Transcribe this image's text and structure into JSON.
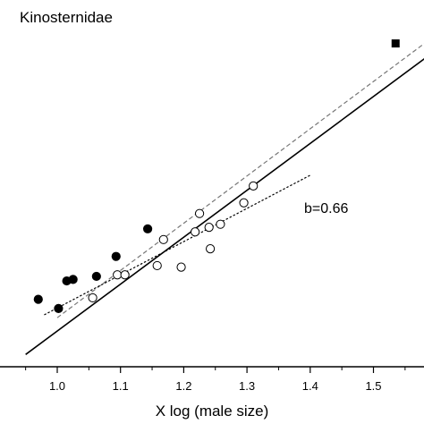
{
  "chart_data": {
    "type": "scatter",
    "title": "Kinosternidae",
    "xlabel": "X log (male size)",
    "ylabel": "",
    "xlim": [
      0.9,
      1.6
    ],
    "ylim": [
      0.58,
      1.66
    ],
    "x_ticks": [
      1.0,
      1.1,
      1.2,
      1.3,
      1.4,
      1.5
    ],
    "x_tick_labels": [
      "1.0",
      "1.1",
      "1.2",
      "1.3",
      "1.4",
      "1.5"
    ],
    "annotation": "b=0.66",
    "grid": false,
    "series": [
      {
        "marker": "filled-circle",
        "color": "#000000",
        "points": [
          {
            "x": 0.97,
            "y": 0.8
          },
          {
            "x": 1.002,
            "y": 0.77
          },
          {
            "x": 1.015,
            "y": 0.86
          },
          {
            "x": 1.025,
            "y": 0.865
          },
          {
            "x": 1.062,
            "y": 0.875
          },
          {
            "x": 1.093,
            "y": 0.94
          },
          {
            "x": 1.143,
            "y": 1.03
          }
        ]
      },
      {
        "marker": "open-circle",
        "color": "#000000",
        "points": [
          {
            "x": 1.056,
            "y": 0.805
          },
          {
            "x": 1.095,
            "y": 0.88
          },
          {
            "x": 1.107,
            "y": 0.88
          },
          {
            "x": 1.158,
            "y": 0.91
          },
          {
            "x": 1.168,
            "y": 0.995
          },
          {
            "x": 1.196,
            "y": 0.905
          },
          {
            "x": 1.218,
            "y": 1.02
          },
          {
            "x": 1.225,
            "y": 1.08
          },
          {
            "x": 1.24,
            "y": 1.035
          },
          {
            "x": 1.242,
            "y": 0.965
          },
          {
            "x": 1.258,
            "y": 1.045
          },
          {
            "x": 1.295,
            "y": 1.115
          },
          {
            "x": 1.31,
            "y": 1.17
          }
        ]
      },
      {
        "marker": "filled-square",
        "color": "#000000",
        "points": [
          {
            "x": 1.535,
            "y": 1.635
          }
        ]
      }
    ],
    "lines": [
      {
        "style": "solid",
        "color": "#000000",
        "x": [
          0.95,
          1.6
        ],
        "y": [
          0.62,
          1.615
        ]
      },
      {
        "style": "dashed",
        "color": "#777777",
        "x": [
          1.0,
          1.6
        ],
        "y": [
          0.74,
          1.665
        ]
      },
      {
        "style": "dotted",
        "color": "#000000",
        "x": [
          0.98,
          1.4
        ],
        "y": [
          0.75,
          1.205
        ]
      }
    ]
  }
}
